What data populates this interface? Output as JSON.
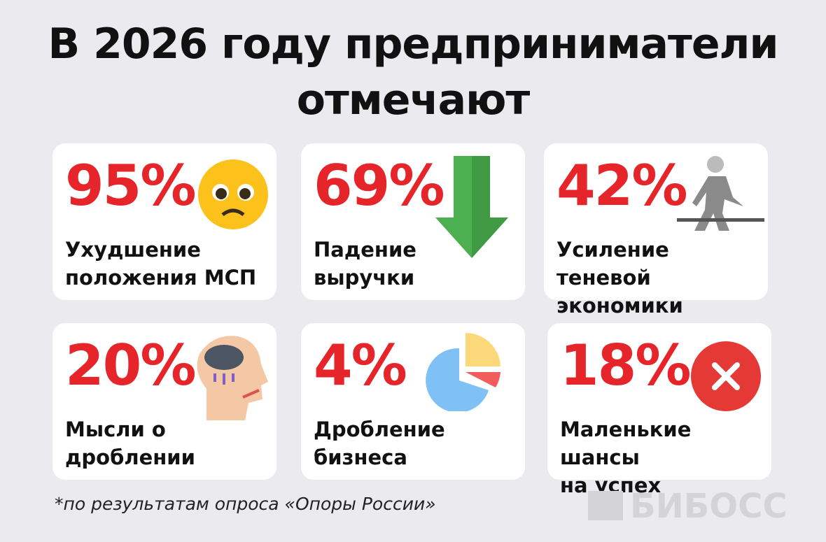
{
  "header": {
    "title_lines": [
      "В 2026 году предприниматели",
      "отмечают"
    ]
  },
  "cards": [
    {
      "value": "95%",
      "label_lines": [
        "Ухудшение",
        "положения МСП"
      ]
    },
    {
      "value": "69%",
      "label_lines": [
        "Падение",
        "выручки"
      ]
    },
    {
      "value": "42%",
      "label_lines": [
        "Усиление теневой",
        "экономики"
      ]
    },
    {
      "value": "20%",
      "label_lines": [
        "Мысли о",
        "дроблении"
      ]
    },
    {
      "value": "4%",
      "label_lines": [
        "Дробление",
        "бизнеса"
      ]
    },
    {
      "value": "18%",
      "label_lines": [
        "Маленькие шансы",
        "на успех"
      ]
    }
  ],
  "footer": {
    "note": "*по результатам опроса «Опоры России»",
    "logo": "БИБОСС"
  }
}
